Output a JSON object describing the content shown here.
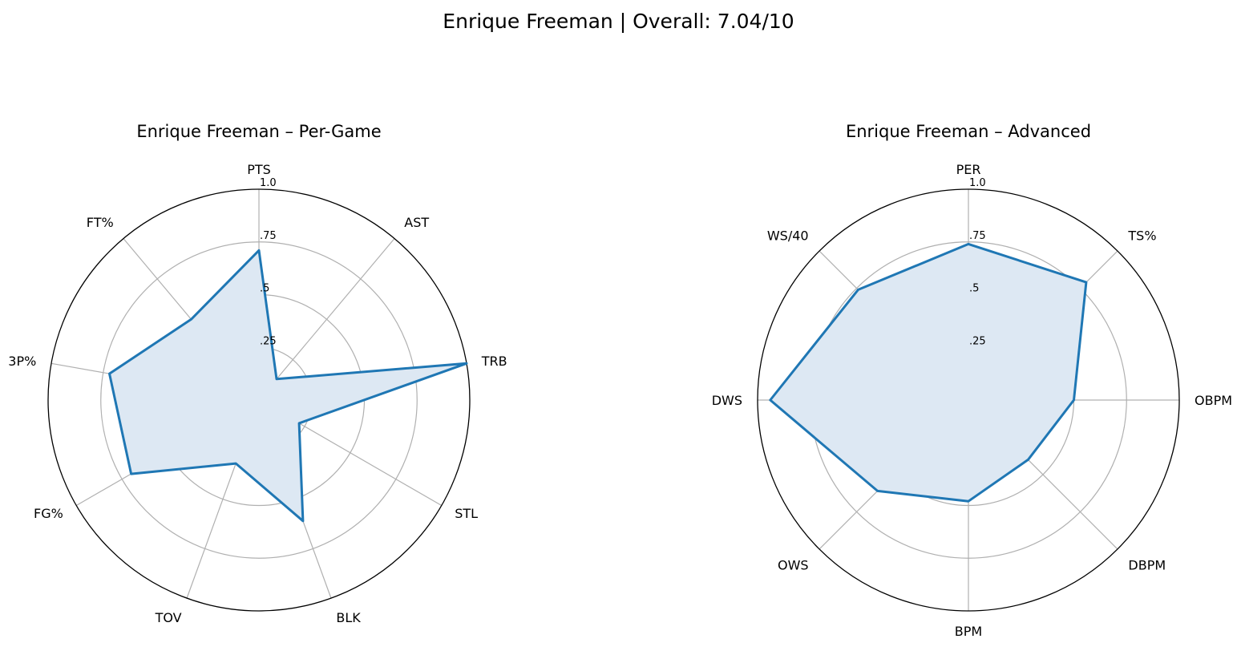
{
  "suptitle": "Enrique Freeman | Overall: 7.04/10",
  "chart_data": [
    {
      "type": "radar",
      "title": "Enrique Freeman – Per-Game",
      "categories": [
        "PTS",
        "AST",
        "TRB",
        "STL",
        "BLK",
        "TOV",
        "FG%",
        "3P%",
        "FT%"
      ],
      "values": [
        0.71,
        0.13,
        1.0,
        0.22,
        0.61,
        0.32,
        0.7,
        0.72,
        0.5
      ],
      "rlim": [
        0,
        1.0
      ],
      "rticks": [
        0.25,
        0.5,
        0.75,
        1.0
      ],
      "rtick_labels": [
        ".25",
        ".5",
        ".75",
        "1.0"
      ],
      "grid": true,
      "colors": {
        "line": "#1f77b4",
        "fill": "#dde8f3",
        "grid": "#b0b0b0"
      }
    },
    {
      "type": "radar",
      "title": "Enrique Freeman – Advanced",
      "categories": [
        "PER",
        "TS%",
        "OBPM",
        "DBPM",
        "BPM",
        "OWS",
        "DWS",
        "WS/40"
      ],
      "values": [
        0.74,
        0.79,
        0.5,
        0.4,
        0.48,
        0.61,
        0.94,
        0.74
      ],
      "rlim": [
        0,
        1.0
      ],
      "rticks": [
        0.25,
        0.5,
        0.75,
        1.0
      ],
      "rtick_labels": [
        ".25",
        ".5",
        ".75",
        "1.0"
      ],
      "grid": true,
      "colors": {
        "line": "#1f77b4",
        "fill": "#dde8f3",
        "grid": "#b0b0b0"
      }
    }
  ]
}
